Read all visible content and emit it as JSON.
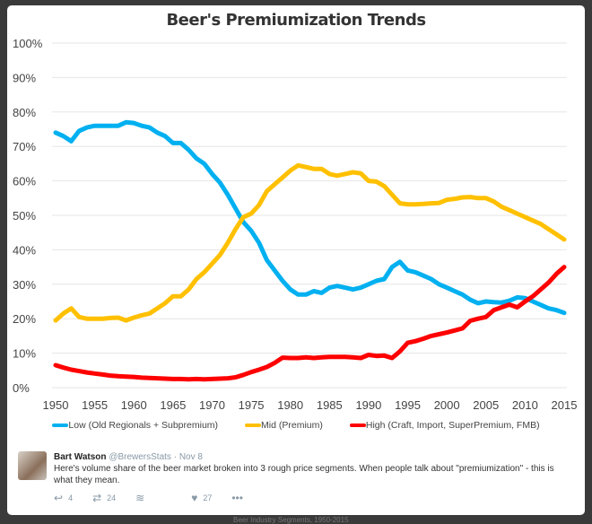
{
  "tweet": {
    "author": "Bart Watson",
    "handle": "@BrewersStats",
    "date": "· Nov 8",
    "text": "Here's volume share of the beer market broken into 3 rough price segments. When people talk about \"premiumization\" - this is what they mean.",
    "replies": "4",
    "retweets": "24",
    "likes": "27",
    "icons": [
      "reply-icon",
      "retweet-icon",
      "buffer-icon",
      "heart-icon",
      "more-icon"
    ]
  },
  "chart_data": {
    "type": "line",
    "title": "Beer's Premiumization Trends",
    "xlabel": "",
    "ylabel": "",
    "xlim": [
      1950,
      2015
    ],
    "ylim": [
      0,
      100
    ],
    "x_ticks": [
      "1950",
      "1955",
      "1960",
      "1965",
      "1970",
      "1975",
      "1980",
      "1985",
      "1990",
      "1995",
      "2000",
      "2005",
      "2010",
      "2015"
    ],
    "y_ticks": [
      "0%",
      "10%",
      "20%",
      "30%",
      "40%",
      "50%",
      "60%",
      "70%",
      "80%",
      "90%",
      "100%"
    ],
    "grid": true,
    "legend_position": "bottom",
    "x_start": 1950,
    "series": [
      {
        "name": "Low (Old Regionals + Subpremium)",
        "color": "#00b0f0",
        "values": [
          74,
          73,
          71.5,
          74.5,
          75.5,
          76,
          76,
          76,
          76,
          77,
          76.8,
          76,
          75.5,
          74,
          73,
          71,
          71,
          69,
          66.5,
          65,
          62,
          59.5,
          56,
          52,
          48,
          45.5,
          42,
          37,
          34,
          31,
          28.5,
          27,
          27,
          28,
          27.5,
          29,
          29.5,
          29,
          28.5,
          29,
          30,
          31,
          31.5,
          35,
          36.5,
          34,
          33.5,
          32.5,
          31.5,
          30,
          29,
          28,
          27,
          25.5,
          24.5,
          25,
          24.8,
          24.7,
          25.2,
          26.2,
          26,
          25,
          24,
          23,
          22.5,
          21.7
        ]
      },
      {
        "name": "Mid (Premium)",
        "color": "#ffc000",
        "values": [
          19.5,
          21.5,
          23,
          20.5,
          20,
          20,
          20,
          20.2,
          20.3,
          19.5,
          20.3,
          21,
          21.5,
          23,
          24.5,
          26.5,
          26.5,
          28.5,
          31.5,
          33.5,
          36,
          38.5,
          42,
          46,
          49.5,
          50.5,
          53,
          57,
          59,
          61,
          63,
          64.5,
          64,
          63.5,
          63.5,
          62,
          61.5,
          62,
          62.5,
          62.2,
          60,
          59.8,
          58.5,
          56,
          53.5,
          53.2,
          53.2,
          53.3,
          53.5,
          53.6,
          54.5,
          54.8,
          55.2,
          55.3,
          55,
          55,
          54,
          52.5,
          51.5,
          50.5,
          49.5,
          48.5,
          47.5,
          46,
          44.5,
          43
        ]
      },
      {
        "name": "High (Craft, Import, SuperPremium, FMB)",
        "color": "#ff0000",
        "values": [
          6.5,
          5.8,
          5.2,
          4.8,
          4.4,
          4.1,
          3.8,
          3.5,
          3.3,
          3.2,
          3.1,
          2.9,
          2.8,
          2.7,
          2.6,
          2.5,
          2.5,
          2.4,
          2.5,
          2.4,
          2.5,
          2.6,
          2.7,
          3,
          3.7,
          4.5,
          5.2,
          6,
          7.2,
          8.7,
          8.6,
          8.6,
          8.8,
          8.6,
          8.8,
          8.9,
          8.9,
          8.9,
          8.8,
          8.6,
          9.5,
          9.2,
          9.3,
          8.6,
          10.5,
          13,
          13.5,
          14.2,
          15,
          15.5,
          16,
          16.6,
          17.2,
          19.4,
          20,
          20.5,
          22.5,
          23.3,
          24.1,
          23.3,
          25,
          26.5,
          28.5,
          30.5,
          33,
          35
        ]
      }
    ]
  },
  "background_caption": "Beer Industry Segments, 1950-2015"
}
